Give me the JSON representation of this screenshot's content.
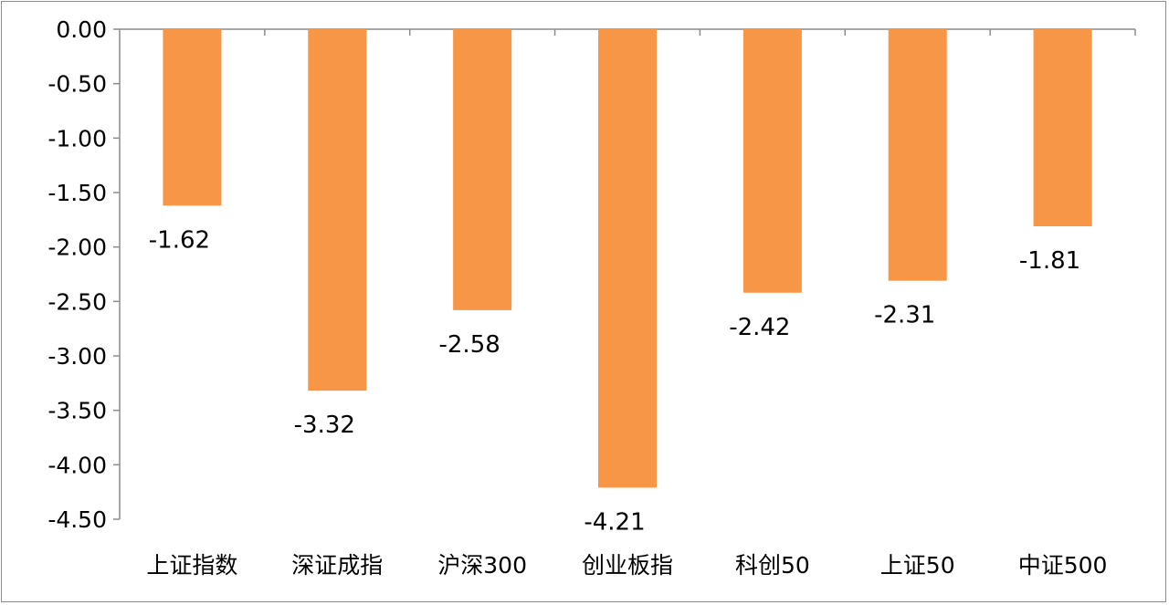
{
  "chart_data": {
    "type": "bar",
    "title": "",
    "xlabel": "",
    "ylabel": "",
    "categories": [
      "上证指数",
      "深证成指",
      "沪深300",
      "创业板指",
      "科创50",
      "上证50",
      "中证500"
    ],
    "values": [
      -1.62,
      -3.32,
      -2.58,
      -4.21,
      -2.42,
      -2.31,
      -1.81
    ],
    "data_labels": [
      "-1.62",
      "-3.32",
      "-2.58",
      "-4.21",
      "-2.42",
      "-2.31",
      "-1.81"
    ],
    "y_ticks": [
      0,
      -0.5,
      -1,
      -1.5,
      -2,
      -2.5,
      -3,
      -3.5,
      -4,
      -4.5
    ],
    "y_tick_labels": [
      "0.00",
      "-0.50",
      "-1.00",
      "-1.50",
      "-2.00",
      "-2.50",
      "-3.00",
      "-3.50",
      "-4.00",
      "-4.50"
    ],
    "ylim": [
      -4.5,
      0
    ],
    "grid": false,
    "legend": "none",
    "bar_color": "#F79646"
  }
}
